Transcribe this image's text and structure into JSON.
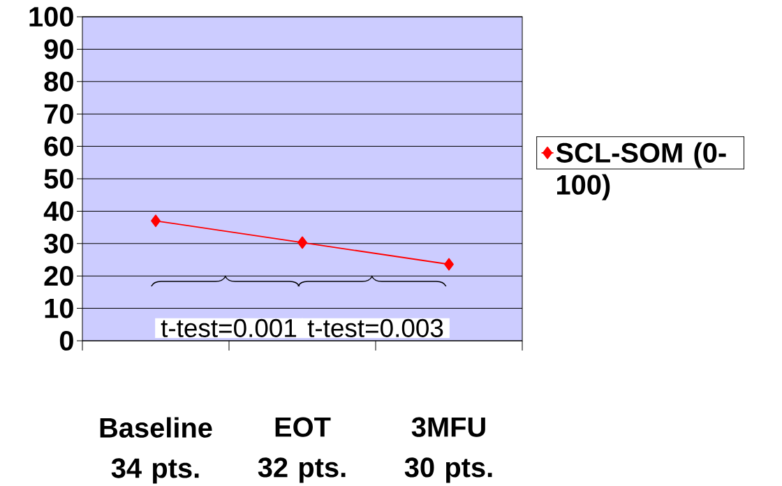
{
  "chart_data": {
    "type": "line",
    "categories": [
      "Baseline 34 pts.",
      "EOT 32 pts.",
      "3MFU 30 pts."
    ],
    "series": [
      {
        "name": "SCL-SOM (0-100)",
        "color": "#ff0000",
        "values": [
          37,
          30.3,
          23.6
        ]
      }
    ],
    "ylim": [
      0,
      100
    ],
    "yticks": [
      0,
      10,
      20,
      30,
      40,
      50,
      60,
      70,
      80,
      90,
      100
    ],
    "grid": "y",
    "legend": "right",
    "marker": "diamond",
    "line_style": "solid",
    "annotations": [
      "t-test=0.001",
      "t-test=0.003"
    ]
  }
}
